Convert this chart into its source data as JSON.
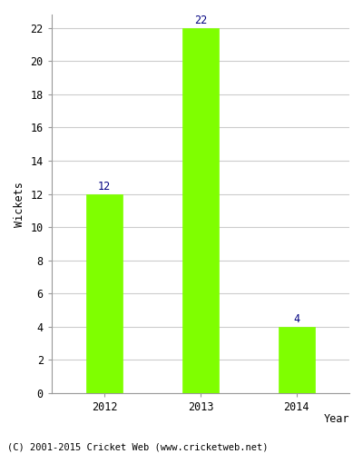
{
  "categories": [
    "2012",
    "2013",
    "2014"
  ],
  "values": [
    12,
    22,
    4
  ],
  "bar_color": "#7FFF00",
  "bar_edgecolor": "#7FFF00",
  "xlabel": "Year",
  "ylabel": "Wickets",
  "ylim": [
    0,
    22.8
  ],
  "yticks": [
    0,
    2,
    4,
    6,
    8,
    10,
    12,
    14,
    16,
    18,
    20,
    22
  ],
  "annotation_color": "#000080",
  "annotation_fontsize": 8.5,
  "axis_label_fontsize": 8.5,
  "tick_fontsize": 8.5,
  "footer_text": "(C) 2001-2015 Cricket Web (www.cricketweb.net)",
  "footer_fontsize": 7.5,
  "footer_color": "#000000",
  "background_color": "#ffffff",
  "grid_color": "#cccccc",
  "bar_width": 0.38
}
